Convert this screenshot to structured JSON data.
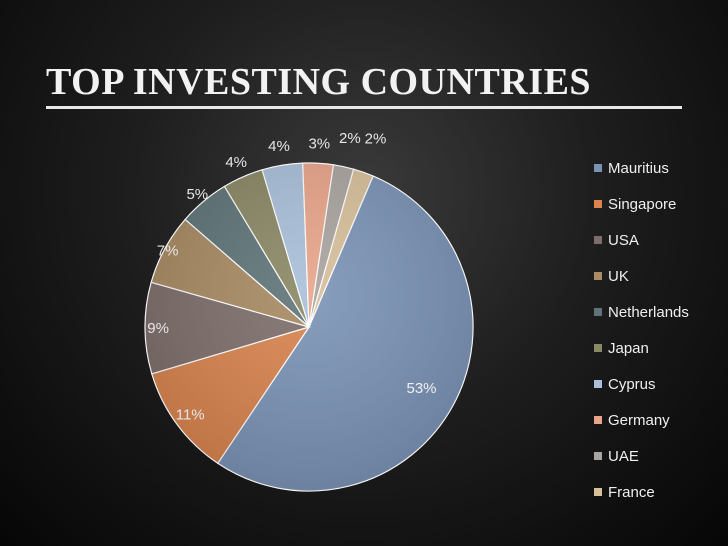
{
  "page": {
    "title": "TOP INVESTING COUNTRIES"
  },
  "chart_data": {
    "type": "pie",
    "title": "",
    "legend_position": "right",
    "categories": [
      "Mauritius",
      "Singapore",
      "USA",
      "UK",
      "Netherlands",
      "Japan",
      "Cyprus",
      "Germany",
      "UAE",
      "France"
    ],
    "values": [
      53,
      11,
      9,
      7,
      5,
      4,
      4,
      3,
      2,
      2
    ],
    "labels": [
      "53%",
      "11%",
      "9%",
      "7%",
      "5%",
      "4%",
      "4%",
      "3%",
      "2%",
      "2%"
    ],
    "colors": [
      "#7a93b5",
      "#d9844f",
      "#7d6e6b",
      "#a88a63",
      "#5f7478",
      "#8a8865",
      "#a9bfd9",
      "#e8a48a",
      "#aaa4a0",
      "#d7bf9b"
    ]
  }
}
